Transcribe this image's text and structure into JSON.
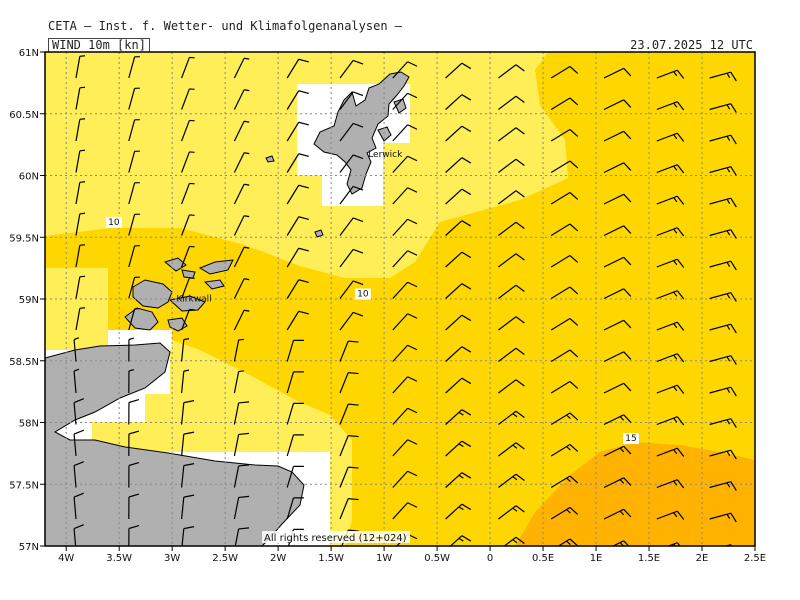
{
  "header": {
    "organization": "CETA — Inst. f. Wetter- und Klimafolgenanalysen —",
    "product_label": "WIND 10m [kn]",
    "valid_time": "23.07.2025 12 UTC"
  },
  "map": {
    "lon_range": [
      -4.2,
      2.5
    ],
    "lat_range": [
      57.0,
      61.0
    ],
    "lon_ticks": [
      {
        "v": -4.0,
        "label": "4W"
      },
      {
        "v": -3.5,
        "label": "3.5W"
      },
      {
        "v": -3.0,
        "label": "3W"
      },
      {
        "v": -2.5,
        "label": "2.5W"
      },
      {
        "v": -2.0,
        "label": "2W"
      },
      {
        "v": -1.5,
        "label": "1.5W"
      },
      {
        "v": -1.0,
        "label": "1W"
      },
      {
        "v": -0.5,
        "label": "0.5W"
      },
      {
        "v": 0.0,
        "label": "0"
      },
      {
        "v": 0.5,
        "label": "0.5E"
      },
      {
        "v": 1.0,
        "label": "1E"
      },
      {
        "v": 1.5,
        "label": "1.5E"
      },
      {
        "v": 2.0,
        "label": "2E"
      },
      {
        "v": 2.5,
        "label": "2.5E"
      }
    ],
    "lat_ticks": [
      {
        "v": 61.0,
        "label": "61N"
      },
      {
        "v": 60.5,
        "label": "60.5N"
      },
      {
        "v": 60.0,
        "label": "60N"
      },
      {
        "v": 59.5,
        "label": "59.5N"
      },
      {
        "v": 59.0,
        "label": "59N"
      },
      {
        "v": 58.5,
        "label": "58.5N"
      },
      {
        "v": 58.0,
        "label": "58N"
      },
      {
        "v": 57.5,
        "label": "57.5N"
      },
      {
        "v": 57.0,
        "label": "57N"
      }
    ],
    "places": [
      {
        "name": "Lerwick",
        "lon": -1.15,
        "lat": 60.15
      },
      {
        "name": "Kirkwall",
        "lon": -2.96,
        "lat": 58.98
      }
    ],
    "contour_labels": [
      {
        "text": "10",
        "lon": -3.55,
        "lat": 59.6
      },
      {
        "text": "10",
        "lon": -1.2,
        "lat": 59.02
      },
      {
        "text": "15",
        "lon": 1.33,
        "lat": 57.85
      }
    ],
    "copyright": "All rights reserved (12+024)",
    "colors": {
      "wind_5_10": "#ffee58",
      "wind_10_15": "#ffd700",
      "wind_15_20": "#ffb300",
      "land": "#b0b0b0",
      "coast": "#000000",
      "grid": "#888888",
      "barb": "#000000"
    }
  }
}
